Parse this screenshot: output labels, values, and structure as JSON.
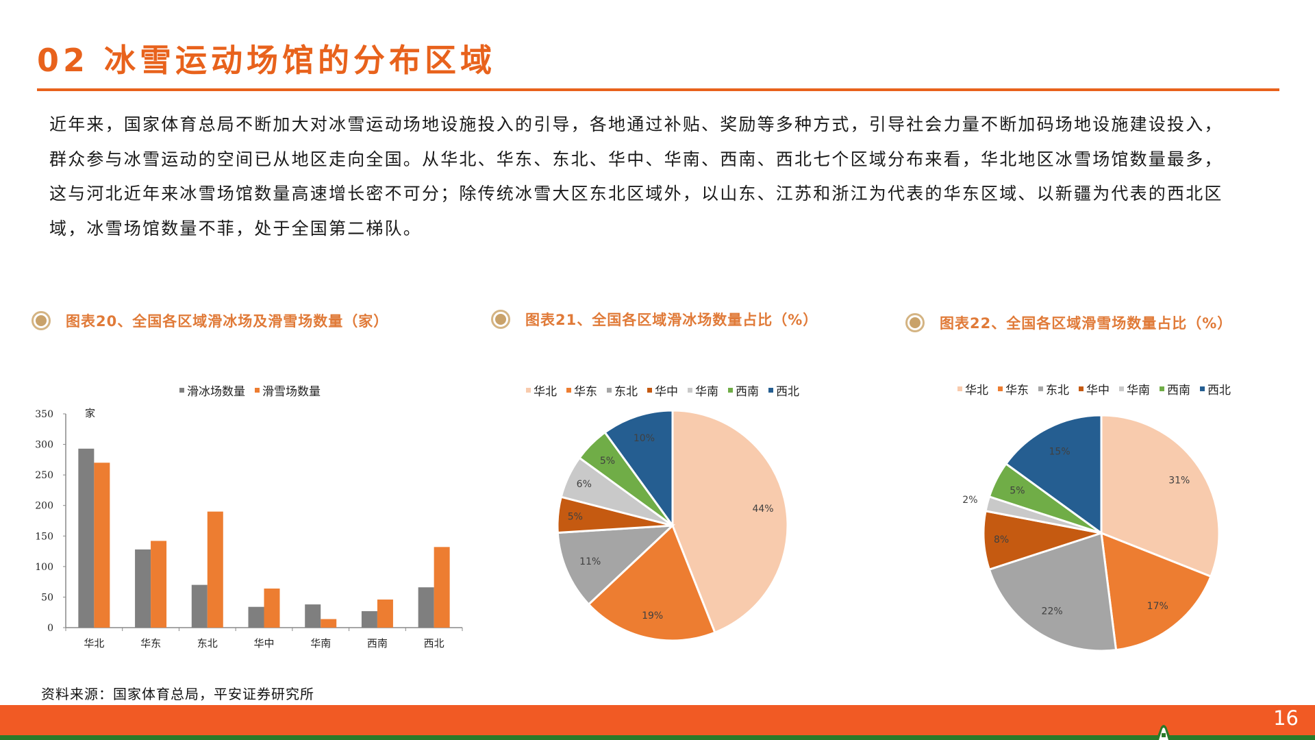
{
  "header": {
    "title": "02 冰雪运动场馆的分布区域"
  },
  "intro": {
    "lines": [
      "近年来，国家体育总局不断加大对冰雪运动场地设施投入的引导，各地通过补贴、奖励等多种方式，引导社会力量不断加码场地设施建设投入，",
      "群众参与冰雪运动的空间已从地区走向全国。从华北、华东、东北、华中、华南、西南、西北七个区域分布来看，华北地区冰雪场馆数量最多，",
      "这与河北近年来冰雪场馆数量高速增长密不可分；除传统冰雪大区东北区域外，以山东、江苏和浙江为代表的华东区域、以新疆为代表的西北区",
      "域，冰雪场馆数量不菲，处于全国第二梯队。"
    ]
  },
  "figures": [
    {
      "title": "图表20、全国各区域滑冰场及滑雪场数量（家）"
    },
    {
      "title": "图表21、全国各区域滑冰场数量占比（%）"
    },
    {
      "title": "图表22、全国各区域滑雪场数量占比（%）"
    }
  ],
  "colors": {
    "accent": "#e8621c",
    "footer": "#f15a24",
    "footer_line": "#2a7a2a",
    "ice": "#7f7f7f",
    "snow": "#ed7d31",
    "regions": [
      "#f8cbad",
      "#ed7d31",
      "#a5a5a5",
      "#c55a11",
      "#c9c9c9",
      "#70ad47",
      "#255e91"
    ]
  },
  "chart_data": [
    {
      "type": "bar",
      "title": "图表20、全国各区域滑冰场及滑雪场数量（家）",
      "xlabel": "",
      "ylabel": "家",
      "ylim": [
        0,
        350
      ],
      "yticks": [
        0,
        50,
        100,
        150,
        200,
        250,
        300,
        350
      ],
      "categories": [
        "华北",
        "华东",
        "东北",
        "华中",
        "华南",
        "西南",
        "西北"
      ],
      "series": [
        {
          "name": "滑冰场数量",
          "color": "#7f7f7f",
          "values": [
            293,
            128,
            70,
            34,
            38,
            27,
            66
          ]
        },
        {
          "name": "滑雪场数量",
          "color": "#ed7d31",
          "values": [
            270,
            142,
            190,
            64,
            14,
            46,
            132
          ]
        }
      ],
      "legend_position": "top",
      "grid": false
    },
    {
      "type": "pie",
      "title": "图表21、全国各区域滑冰场数量占比（%）",
      "categories": [
        "华北",
        "华东",
        "东北",
        "华中",
        "华南",
        "西南",
        "西北"
      ],
      "values": [
        44,
        19,
        11,
        5,
        6,
        5,
        10
      ],
      "labels": [
        "44%",
        "19%",
        "11%",
        "5%",
        "6%",
        "5%",
        "10%"
      ],
      "legend_position": "top"
    },
    {
      "type": "pie",
      "title": "图表22、全国各区域滑雪场数量占比（%）",
      "categories": [
        "华北",
        "华东",
        "东北",
        "华中",
        "华南",
        "西南",
        "西北"
      ],
      "values": [
        31,
        17,
        22,
        8,
        2,
        5,
        15
      ],
      "labels": [
        "31%",
        "17%",
        "22%",
        "8%",
        "2%",
        "5%",
        "15%"
      ],
      "legend_position": "top"
    }
  ],
  "source": "资料来源：国家体育总局，平安证券研究所",
  "footer": {
    "page_number": "16"
  }
}
